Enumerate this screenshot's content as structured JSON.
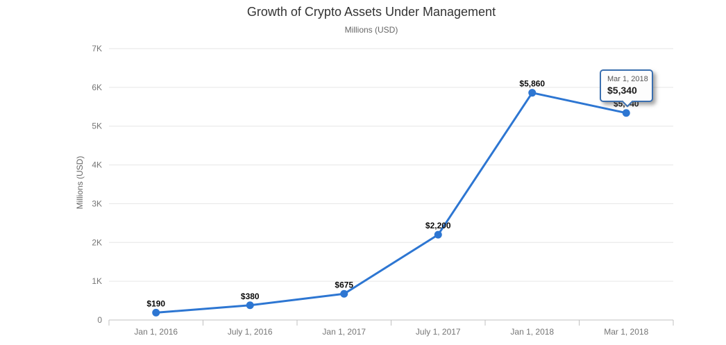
{
  "title": "Growth of Crypto Assets Under Management",
  "subtitle": "Millions (USD)",
  "tooltip": {
    "date": "Mar 1, 2018",
    "value": "$5,340"
  },
  "colors": {
    "line": "#2d76d2",
    "point": "#2d76d2",
    "grid": "#e6e6e6",
    "axis": "#c0c0c0",
    "tick_label": "#757575",
    "data_label": "#0b0b0b",
    "tooltip_border": "#3a6fb0",
    "title": "#333333",
    "subtitle": "#666666"
  },
  "chart_data": {
    "type": "line",
    "title": "Growth of Crypto Assets Under Management",
    "subtitle": "Millions (USD)",
    "ylabel": "Millions (USD)",
    "xlabel": "",
    "categories": [
      "Jan 1, 2016",
      "July 1, 2016",
      "Jan 1, 2017",
      "July 1, 2017",
      "Jan 1, 2018",
      "Mar 1, 2018"
    ],
    "values": [
      190,
      380,
      675,
      2200,
      5860,
      5340
    ],
    "data_labels": [
      "$190",
      "$380",
      "$675",
      "$2,200",
      "$5,860",
      "$5,340"
    ],
    "ylim": [
      0,
      7000
    ],
    "ytick_values": [
      0,
      1000,
      2000,
      3000,
      4000,
      5000,
      6000,
      7000
    ],
    "ytick_labels": [
      "0",
      "1K",
      "2K",
      "3K",
      "4K",
      "5K",
      "6K",
      "7K"
    ],
    "grid": true,
    "legend": false,
    "highlighted_point": "Mar 1, 2018"
  }
}
